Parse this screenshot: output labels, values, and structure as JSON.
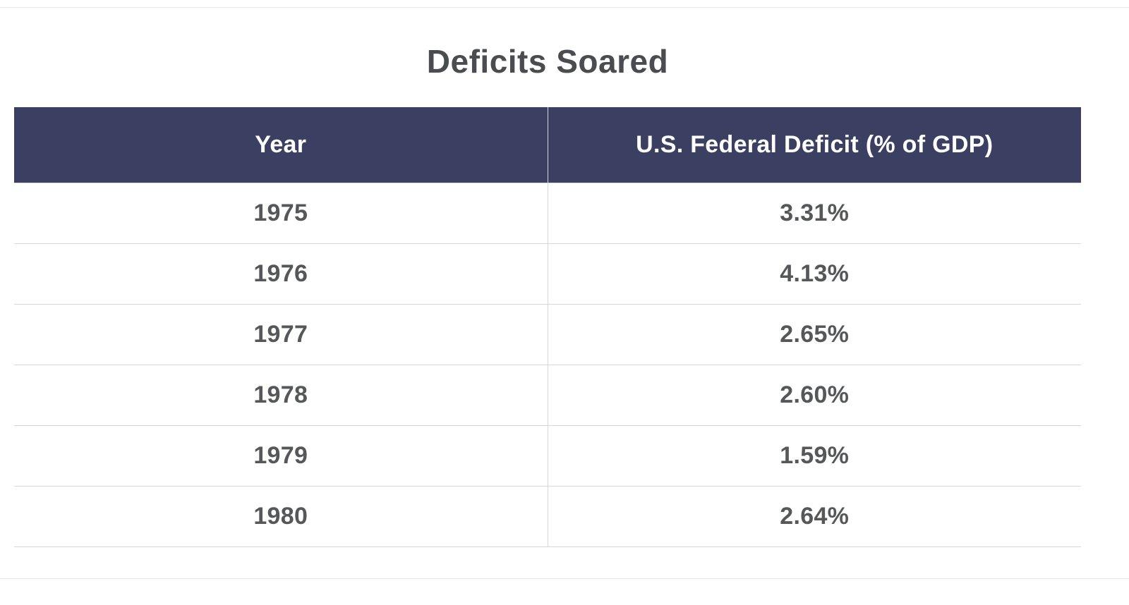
{
  "page": {
    "title": "Deficits Soared"
  },
  "table": {
    "columns": [
      "Year",
      "U.S. Federal Deficit (% of GDP)"
    ],
    "rows": [
      {
        "year": "1975",
        "deficit": "3.31%"
      },
      {
        "year": "1976",
        "deficit": "4.13%"
      },
      {
        "year": "1977",
        "deficit": "2.65%"
      },
      {
        "year": "1978",
        "deficit": "2.60%"
      },
      {
        "year": "1979",
        "deficit": "1.59%"
      },
      {
        "year": "1980",
        "deficit": "2.64%"
      }
    ]
  },
  "colors": {
    "header_background": "#3b4062",
    "header_text": "#ffffff",
    "body_text": "#56575b",
    "border": "#d6d6d6",
    "rule": "#e6e6e6",
    "title_text": "#4b4c51"
  },
  "chart_data": {
    "type": "table",
    "title": "Deficits Soared",
    "columns": [
      "Year",
      "U.S. Federal Deficit (% of GDP)"
    ],
    "categories": [
      "1975",
      "1976",
      "1977",
      "1978",
      "1979",
      "1980"
    ],
    "values": [
      3.31,
      4.13,
      2.65,
      2.6,
      1.59,
      2.64
    ],
    "ylabel": "U.S. Federal Deficit (% of GDP)",
    "xlabel": "Year",
    "value_unit": "% of GDP"
  }
}
